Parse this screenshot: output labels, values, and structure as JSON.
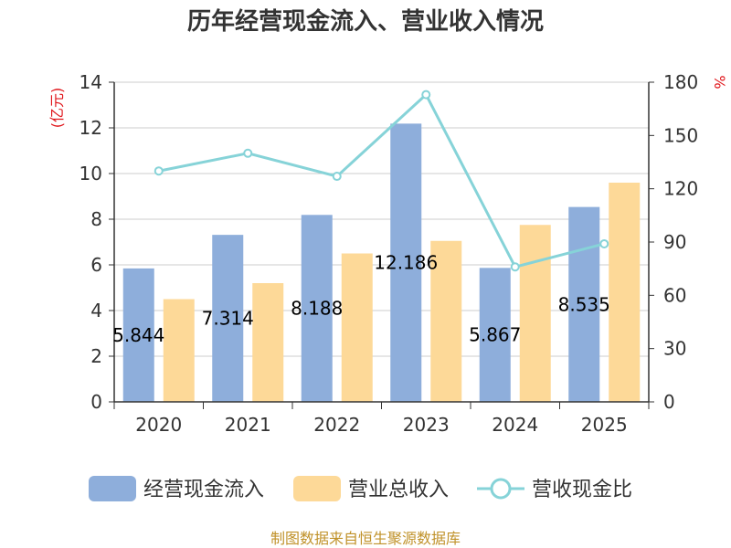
{
  "chart_data": {
    "type": "bar",
    "title": "历年经营现金流入、营业收入情况",
    "categories": [
      "2020",
      "2021",
      "2022",
      "2023",
      "2024",
      "2025"
    ],
    "left_axis": {
      "unit": "(亿元)",
      "ylim": [
        0,
        14
      ],
      "ticks": [
        0,
        2,
        4,
        6,
        8,
        10,
        12,
        14
      ]
    },
    "right_axis": {
      "unit": "%",
      "ylim": [
        0,
        180
      ],
      "ticks": [
        0,
        30,
        60,
        90,
        120,
        150,
        180
      ]
    },
    "series": [
      {
        "name": "经营现金流入",
        "type": "bar",
        "axis": "left",
        "color": "#8eaedb",
        "values": [
          5.844,
          7.314,
          8.188,
          12.186,
          5.867,
          8.535
        ],
        "labels": [
          "5.844",
          "7.314",
          "8.188",
          "12.186",
          "5.867",
          "8.535"
        ]
      },
      {
        "name": "营业总收入",
        "type": "bar",
        "axis": "left",
        "color": "#fdd998",
        "values": [
          4.5,
          5.2,
          6.5,
          7.05,
          7.75,
          9.6
        ]
      },
      {
        "name": "营收现金比",
        "type": "line",
        "axis": "right",
        "color": "#86d3d8",
        "values": [
          130,
          140,
          127,
          173,
          76,
          89
        ]
      }
    ],
    "grid": true,
    "legend_position": "bottom"
  },
  "footer": {
    "source": "制图数据来自恒生聚源数据库"
  }
}
